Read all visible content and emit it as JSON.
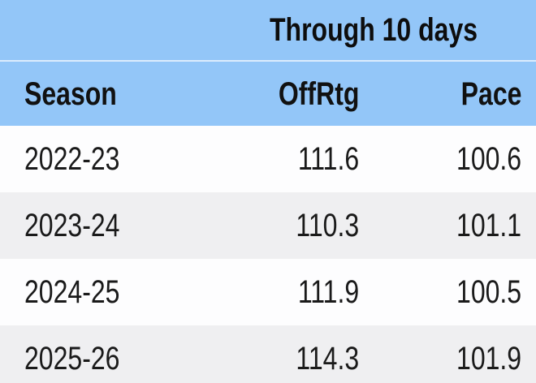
{
  "chart_data": {
    "type": "table",
    "title": "Through 10 days",
    "columns": [
      "Season",
      "OffRtg",
      "Pace"
    ],
    "rows": [
      [
        "2022-23",
        "111.6",
        "100.6"
      ],
      [
        "2023-24",
        "110.3",
        "101.1"
      ],
      [
        "2024-25",
        "111.9",
        "100.5"
      ],
      [
        "2025-26",
        "114.3",
        "101.9"
      ]
    ],
    "layout_hints": {
      "numeric_columns_right_aligned": true,
      "group_header_spans": [
        "OffRtg",
        "Pace"
      ],
      "zebra_striping": true
    }
  },
  "colors": {
    "header_background": "#93c6f8",
    "header_divider": "#dcecfc",
    "row_background": "#fdfdfe",
    "row_alt_background": "#efeff1",
    "text": "#1a1a1a"
  }
}
